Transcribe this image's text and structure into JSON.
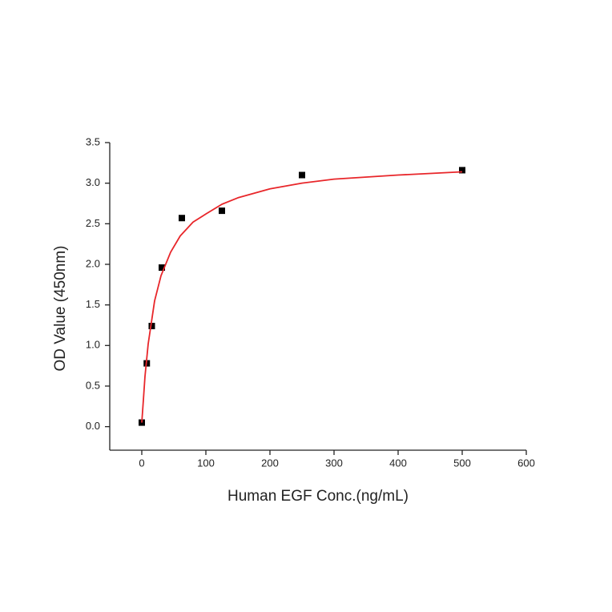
{
  "chart_data": {
    "type": "scatter",
    "x_label": "Human EGF Conc.(ng/mL)",
    "y_label": "OD Value (450nm)",
    "xlim": [
      -50,
      600
    ],
    "xticks": [
      0,
      100,
      200,
      300,
      400,
      500,
      600
    ],
    "ylim": [
      -0.29,
      3.5
    ],
    "yticks": [
      {
        "value": 0,
        "label": "0.0"
      },
      0.5,
      {
        "value": 1,
        "label": "1.0"
      },
      1.5,
      {
        "value": 2,
        "label": "2.0"
      },
      2.5,
      {
        "value": 3,
        "label": "3.0"
      },
      3.5
    ],
    "grid": false,
    "series": [
      {
        "color": "#000000",
        "marker": "square",
        "x": [
          0,
          7.8,
          15.6,
          31.25,
          62.5,
          125,
          250,
          500
        ],
        "values": [
          0.05,
          0.78,
          1.24,
          1.96,
          2.57,
          2.66,
          3.1,
          3.16
        ]
      },
      {
        "color": "#e8262a",
        "line": true,
        "x": [
          0,
          2.5,
          5,
          10,
          20,
          30,
          45,
          60,
          80,
          100,
          125,
          150,
          200,
          250,
          300,
          400,
          500
        ],
        "values": [
          0.05,
          0.33,
          0.62,
          1.02,
          1.55,
          1.86,
          2.15,
          2.35,
          2.52,
          2.62,
          2.74,
          2.82,
          2.93,
          3.0,
          3.05,
          3.1,
          3.14
        ]
      }
    ]
  }
}
